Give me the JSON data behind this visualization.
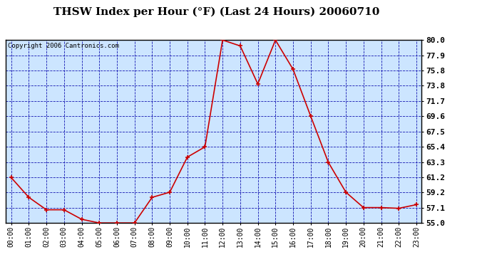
{
  "title": "THSW Index per Hour (°F) (Last 24 Hours) 20060710",
  "copyright": "Copyright 2006 Cantronics.com",
  "hours": [
    0,
    1,
    2,
    3,
    4,
    5,
    6,
    7,
    8,
    9,
    10,
    11,
    12,
    13,
    14,
    15,
    16,
    17,
    18,
    19,
    20,
    21,
    22,
    23
  ],
  "values": [
    61.2,
    58.5,
    56.8,
    56.8,
    55.5,
    55.0,
    55.0,
    55.0,
    58.5,
    59.2,
    64.0,
    65.4,
    80.0,
    79.2,
    74.0,
    80.0,
    76.0,
    69.6,
    63.3,
    59.2,
    57.1,
    57.1,
    57.0,
    57.5
  ],
  "ylim": [
    55.0,
    80.0
  ],
  "yticks": [
    55.0,
    57.1,
    59.2,
    61.2,
    63.3,
    65.4,
    67.5,
    69.6,
    71.7,
    73.8,
    75.8,
    77.9,
    80.0
  ],
  "line_color": "#cc0000",
  "marker_color": "#cc0000",
  "bg_color": "#cce5ff",
  "outer_bg": "#ffffff",
  "grid_color": "#0000aa",
  "title_fontsize": 11,
  "copyright_fontsize": 6.5,
  "tick_fontsize": 7,
  "ytick_fontsize": 8
}
